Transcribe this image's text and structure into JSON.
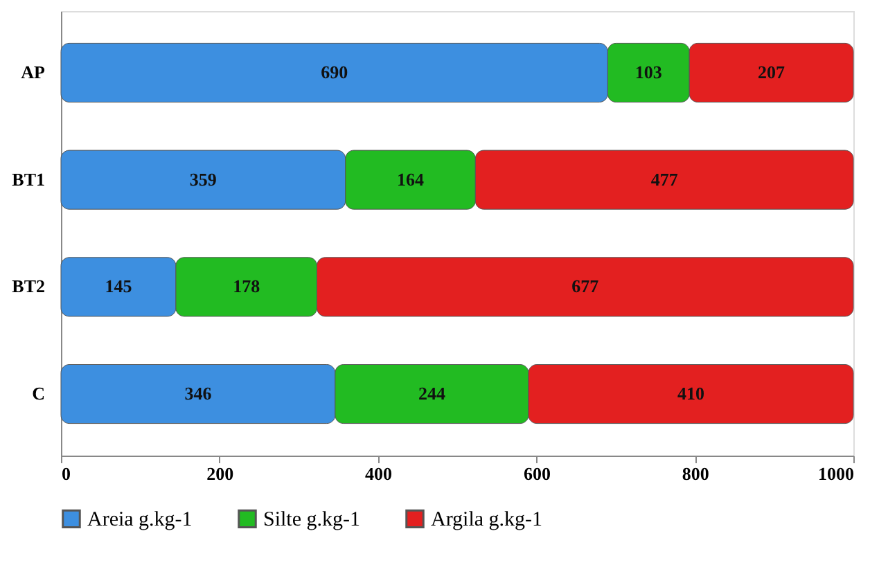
{
  "chart_data": {
    "type": "bar",
    "orientation": "horizontal",
    "stacked": true,
    "data_labels": true,
    "categories": [
      "AP",
      "BT1",
      "BT2",
      "C"
    ],
    "series": [
      {
        "name": "Areia g.kg-1",
        "color": "#3d8fe0",
        "values": [
          690,
          359,
          145,
          346
        ]
      },
      {
        "name": "Silte g.kg-1",
        "color": "#22bb22",
        "values": [
          103,
          164,
          178,
          244
        ]
      },
      {
        "name": "Argila g.kg-1",
        "color": "#e32020",
        "values": [
          207,
          477,
          677,
          410
        ]
      }
    ],
    "xlim": [
      0,
      1000
    ],
    "xticks": [
      0,
      200,
      400,
      600,
      800,
      1000
    ],
    "grid": false,
    "legend": "bottom"
  }
}
